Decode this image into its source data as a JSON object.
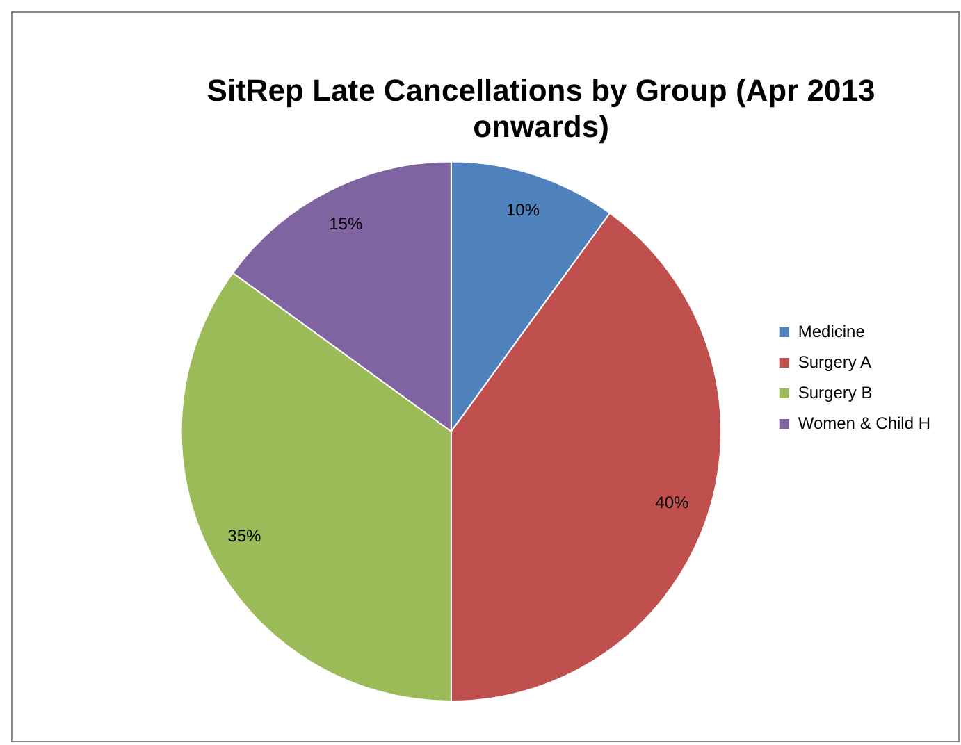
{
  "chart_data": {
    "type": "pie",
    "title": "SitRep Late Cancellations by Group (Apr 2013 onwards)",
    "categories": [
      "Medicine",
      "Surgery A",
      "Surgery B",
      "Women & Child H"
    ],
    "values": [
      10,
      40,
      35,
      15
    ],
    "colors": [
      "#4f81bd",
      "#c0504d",
      "#9bbb59",
      "#8064a2"
    ],
    "value_labels": [
      "10%",
      "40%",
      "35%",
      "15%"
    ],
    "legend": "right"
  }
}
